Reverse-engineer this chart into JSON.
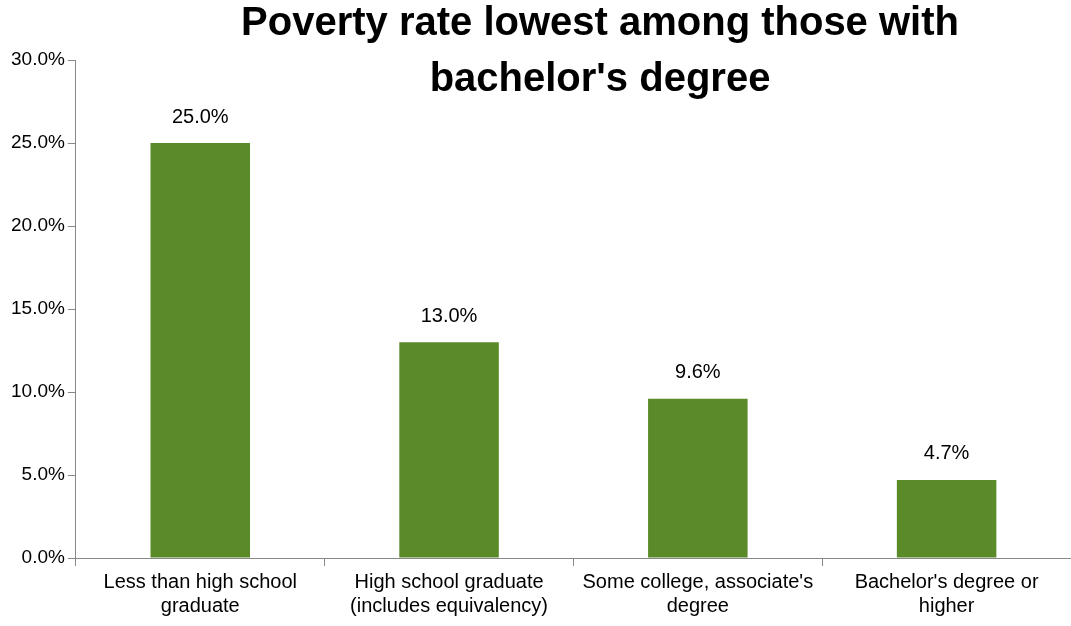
{
  "chart_data": {
    "type": "bar",
    "title": "Poverty rate lowest among those with bachelor's degree",
    "categories": [
      "Less than high school graduate",
      "High school graduate (includes equivalency)",
      "Some college, associate's degree",
      "Bachelor's degree or higher"
    ],
    "values": [
      25.0,
      13.0,
      9.6,
      4.7
    ],
    "value_labels": [
      "25.0%",
      "13.0%",
      "9.6%",
      "4.7%"
    ],
    "color": "#5b8a29",
    "ylim": [
      0,
      30
    ],
    "yticks": [
      {
        "value": 0,
        "label": "0.0%"
      },
      {
        "value": 5,
        "label": "5.0%"
      },
      {
        "value": 10,
        "label": "10.0%"
      },
      {
        "value": 15,
        "label": "15.0%"
      },
      {
        "value": 20,
        "label": "20.0%"
      },
      {
        "value": 25,
        "label": "25.0%"
      },
      {
        "value": 30,
        "label": "30.0%"
      }
    ],
    "grid": false,
    "legend": false
  }
}
